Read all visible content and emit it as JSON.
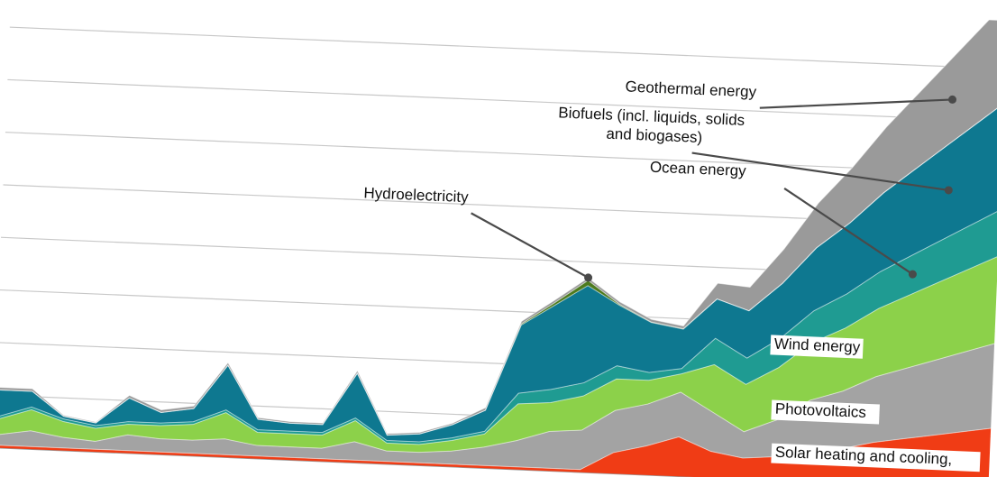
{
  "chart_data": {
    "type": "area",
    "stacked": true,
    "title": "",
    "xlabel": "",
    "ylabel": "",
    "x": [
      0,
      1,
      2,
      3,
      4,
      5,
      6,
      7,
      8,
      9,
      10,
      11,
      12,
      13,
      14,
      15,
      16,
      17,
      18,
      19,
      20,
      21,
      22,
      23,
      24,
      25,
      26,
      27,
      28,
      29,
      30,
      31,
      32
    ],
    "ylim": [
      0,
      9.6
    ],
    "grid": true,
    "legend": "none",
    "series": [
      {
        "name": "Solar heating and cooling,",
        "color": "#f03c15",
        "values": [
          0.05,
          0.05,
          0.05,
          0.05,
          0.05,
          0.05,
          0.05,
          0.05,
          0.05,
          0.05,
          0.05,
          0.05,
          0.05,
          0.05,
          0.05,
          0.05,
          0.05,
          0.05,
          0.05,
          0.05,
          0.4,
          0.55,
          0.75,
          0.5,
          0.4,
          0.45,
          0.55,
          0.65,
          0.8,
          0.9,
          1.0,
          1.1,
          1.2
        ]
      },
      {
        "name": "Photovoltaics",
        "color": "#a3a3a3",
        "values": [
          0.15,
          0.2,
          0.3,
          0.2,
          0.15,
          0.3,
          0.25,
          0.25,
          0.3,
          0.2,
          0.2,
          0.2,
          0.35,
          0.2,
          0.2,
          0.25,
          0.35,
          0.5,
          0.7,
          0.75,
          0.8,
          0.8,
          0.85,
          0.75,
          0.5,
          0.7,
          1.0,
          1.1,
          1.25,
          1.35,
          1.45,
          1.55,
          1.65
        ]
      },
      {
        "name": "Wind energy",
        "color": "#8cd14a",
        "values": [
          0.3,
          0.3,
          0.4,
          0.3,
          0.25,
          0.2,
          0.25,
          0.3,
          0.5,
          0.25,
          0.25,
          0.25,
          0.4,
          0.15,
          0.15,
          0.2,
          0.25,
          0.7,
          0.55,
          0.65,
          0.6,
          0.45,
          0.35,
          0.9,
          0.9,
          1.0,
          1.1,
          1.2,
          1.3,
          1.4,
          1.5,
          1.6,
          1.7
        ]
      },
      {
        "name": "Ocean energy",
        "color": "#1f9b92",
        "values": [
          0.05,
          0.05,
          0.05,
          0.05,
          0.05,
          0.05,
          0.05,
          0.05,
          0.05,
          0.05,
          0.05,
          0.05,
          0.05,
          0.05,
          0.05,
          0.05,
          0.05,
          0.2,
          0.25,
          0.25,
          0.25,
          0.15,
          0.1,
          0.5,
          0.5,
          0.55,
          0.6,
          0.65,
          0.7,
          0.75,
          0.8,
          0.85,
          0.9
        ]
      },
      {
        "name": "Biofuels (incl. liquids, solids and biogases)",
        "color": "#0e7890",
        "values": [
          0.2,
          0.5,
          0.3,
          0.05,
          0.05,
          0.45,
          0.2,
          0.25,
          0.85,
          0.2,
          0.15,
          0.15,
          0.85,
          0.1,
          0.15,
          0.25,
          0.4,
          1.3,
          1.6,
          1.85,
          1.15,
          0.95,
          0.75,
          0.75,
          0.9,
          1.05,
          1.2,
          1.35,
          1.5,
          1.65,
          1.8,
          1.95,
          2.1
        ]
      },
      {
        "name": "Hydroelectricity",
        "color": "#4d7a1e",
        "values": [
          0,
          0,
          0,
          0,
          0,
          0,
          0,
          0,
          0,
          0,
          0,
          0,
          0,
          0,
          0,
          0,
          0,
          0.02,
          0.05,
          0.1,
          0.02,
          0.01,
          0.01,
          0,
          0,
          0,
          0,
          0,
          0,
          0,
          0,
          0,
          0
        ]
      },
      {
        "name": "Geothermal energy",
        "color": "#9a9a9a",
        "values": [
          0.02,
          0.05,
          0.05,
          0.02,
          0.02,
          0.05,
          0.05,
          0.05,
          0.05,
          0.03,
          0.03,
          0.03,
          0.05,
          0.03,
          0.03,
          0.03,
          0.05,
          0.05,
          0.05,
          0.05,
          0.05,
          0.05,
          0.05,
          0.3,
          0.45,
          0.65,
          0.85,
          1.05,
          1.25,
          1.45,
          1.65,
          1.85,
          2.05
        ]
      }
    ]
  }
}
